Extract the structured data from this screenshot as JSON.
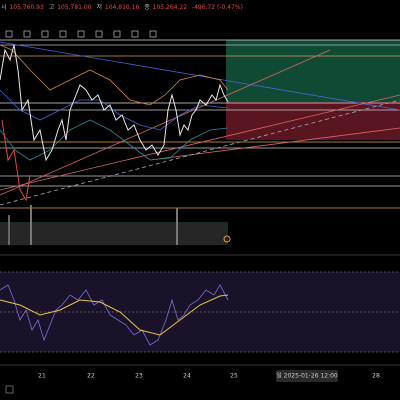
{
  "header": {
    "open_label": "시",
    "open": "105,760.93",
    "high_label": "고",
    "high": "105,781.00",
    "low_label": "저",
    "low": "104,810.16",
    "close_label": "종",
    "close": "105,264.22",
    "change": "-496.72 (-0.47%)"
  },
  "x_axis": {
    "labels": [
      "21",
      "22",
      "23",
      "24",
      "25",
      "28"
    ],
    "crosshair_label": "일 2025-01-26 12:00"
  }
}
